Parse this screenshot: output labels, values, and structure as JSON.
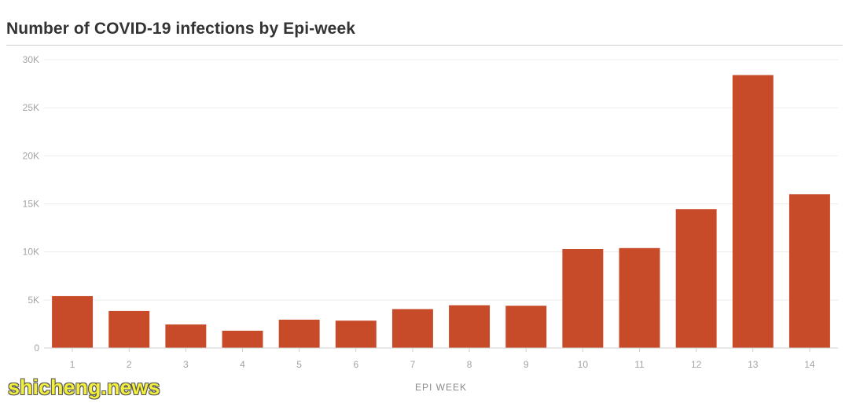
{
  "chart_data": {
    "type": "bar",
    "title": "Number of COVID-19 infections by Epi-week",
    "xlabel": "EPI WEEK",
    "ylabel": "",
    "categories": [
      "1",
      "2",
      "3",
      "4",
      "5",
      "6",
      "7",
      "8",
      "9",
      "10",
      "11",
      "12",
      "13",
      "14"
    ],
    "values": [
      5400,
      3850,
      2450,
      1800,
      2950,
      2850,
      4050,
      4450,
      4400,
      10300,
      10400,
      14450,
      28400,
      16000
    ],
    "ylim": [
      0,
      30000
    ],
    "yticks": [
      0,
      5000,
      10000,
      15000,
      20000,
      25000,
      30000
    ],
    "ytick_labels": [
      "0",
      "5K",
      "10K",
      "15K",
      "20K",
      "25K",
      "30K"
    ],
    "bar_color": "#c84b29",
    "grid": true
  },
  "colors": {
    "bar": "#c84b29",
    "grid": "#ececec",
    "axis": "#cfcfcf",
    "tick_text": "#a3a3a3"
  },
  "watermark": {
    "text": "shicheng.news"
  }
}
